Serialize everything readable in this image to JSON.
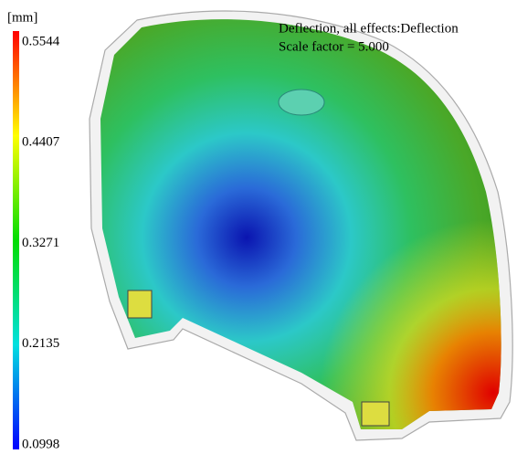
{
  "legend": {
    "unit": "[mm]",
    "ticks": [
      0.5544,
      0.4407,
      0.3271,
      0.2135,
      0.0998
    ]
  },
  "annotation": {
    "lines": [
      "Deflection, all effects:Deflection",
      "Scale factor = 5.000"
    ]
  }
}
